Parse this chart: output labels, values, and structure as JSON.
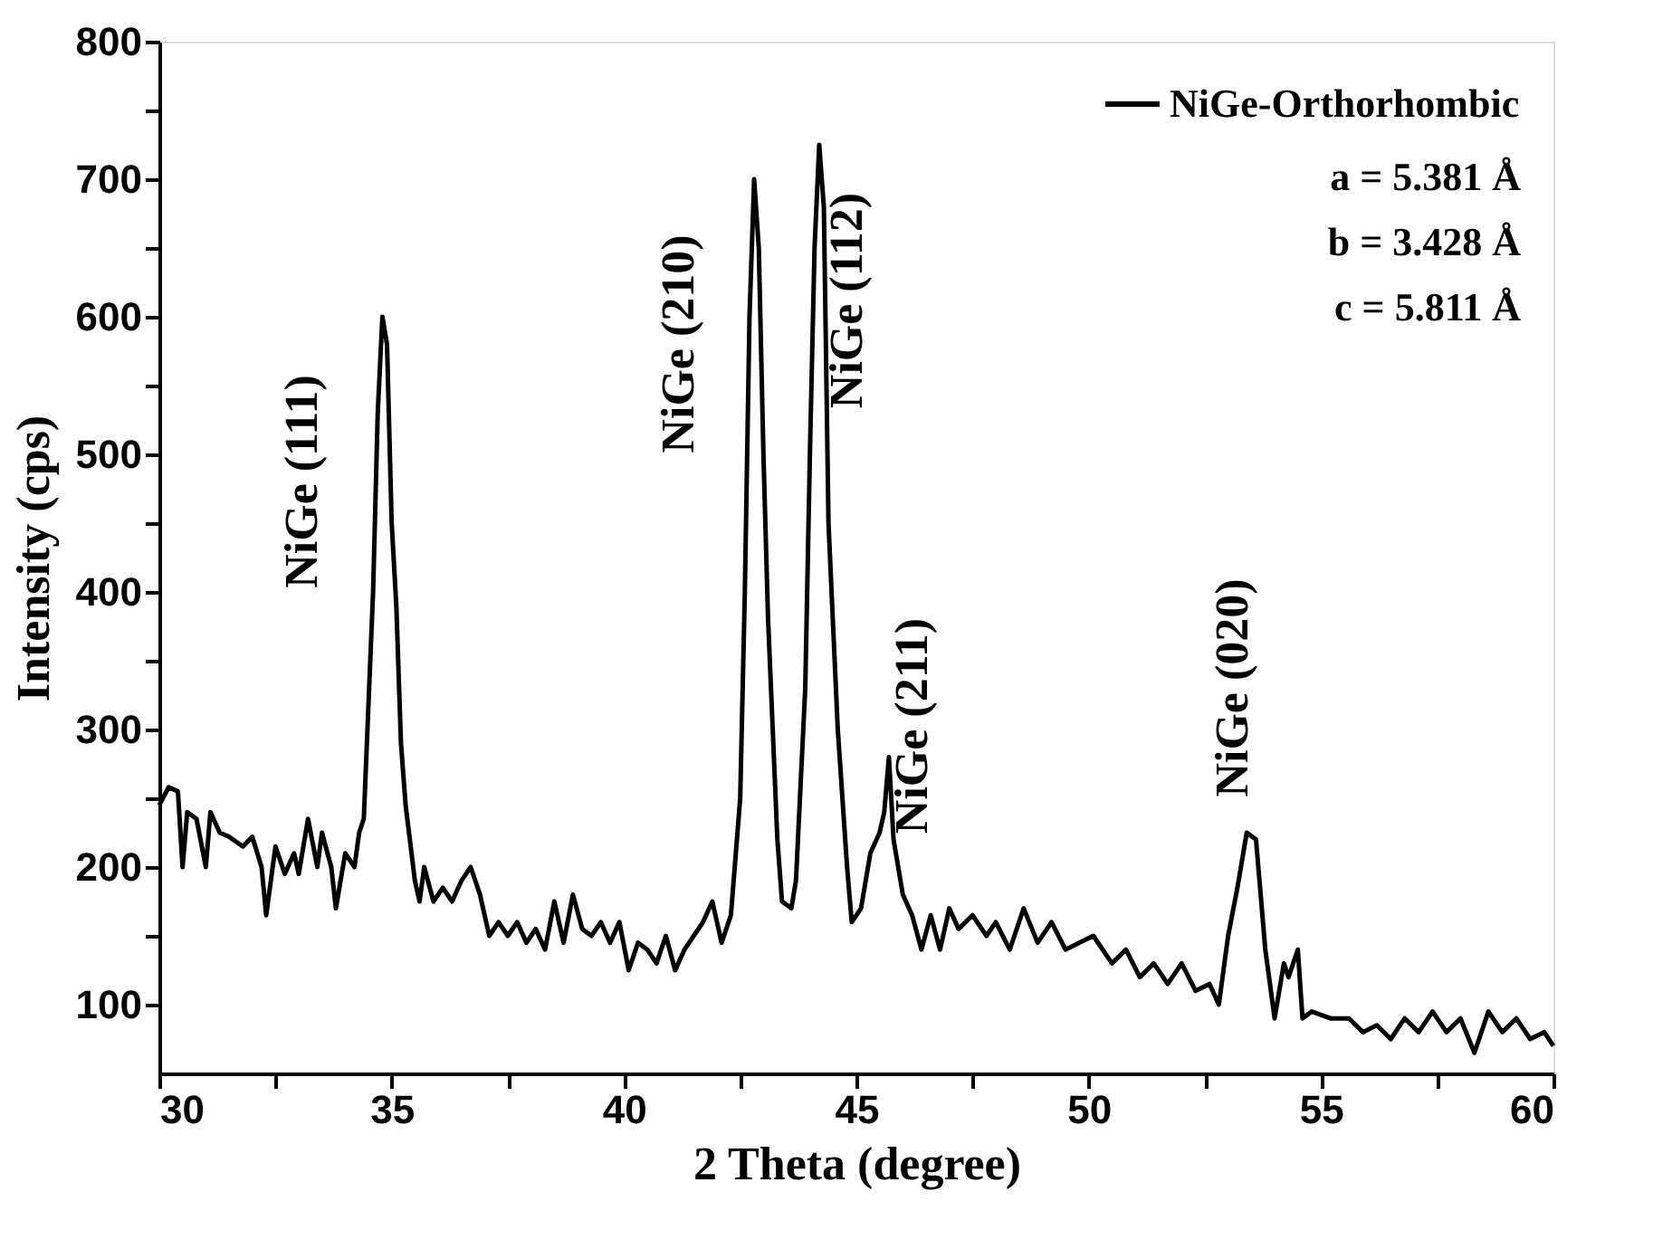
{
  "chart_data": {
    "type": "line",
    "xlabel": "2 Theta (degree)",
    "ylabel": "Intensity (cps)",
    "xlim": [
      30,
      60
    ],
    "ylim": [
      50,
      800
    ],
    "xticks": [
      30,
      {
        "value": 32.5,
        "label": null
      },
      35,
      {
        "value": 37.5,
        "label": null
      },
      40,
      {
        "value": 42.5,
        "label": null
      },
      45,
      {
        "value": 47.5,
        "label": null
      },
      50,
      {
        "value": 52.5,
        "label": null
      },
      55,
      {
        "value": 57.5,
        "label": null
      },
      60
    ],
    "yticks": [
      100,
      {
        "value": 150,
        "label": null
      },
      200,
      {
        "value": 250,
        "label": null
      },
      300,
      {
        "value": 350,
        "label": null
      },
      400,
      {
        "value": 450,
        "label": null
      },
      500,
      {
        "value": 550,
        "label": null
      },
      600,
      {
        "value": 650,
        "label": null
      },
      700,
      {
        "value": 750,
        "label": null
      },
      800
    ],
    "grid": false,
    "legend": "top right",
    "line_style": "solid",
    "marker": "none",
    "series": [
      {
        "name": "NiGe-Orthorhombic",
        "color": "#000000",
        "x": [
          30.0,
          30.2,
          30.4,
          30.5,
          30.6,
          30.8,
          31.0,
          31.1,
          31.3,
          31.5,
          31.8,
          32.0,
          32.2,
          32.3,
          32.5,
          32.7,
          32.9,
          33.0,
          33.2,
          33.4,
          33.5,
          33.7,
          33.8,
          34.0,
          34.2,
          34.3,
          34.4,
          34.6,
          34.7,
          34.8,
          34.9,
          35.0,
          35.1,
          35.2,
          35.3,
          35.5,
          35.6,
          35.7,
          35.9,
          36.1,
          36.3,
          36.5,
          36.7,
          36.9,
          37.1,
          37.3,
          37.5,
          37.7,
          37.9,
          38.1,
          38.3,
          38.5,
          38.7,
          38.9,
          39.1,
          39.3,
          39.5,
          39.7,
          39.9,
          40.1,
          40.3,
          40.5,
          40.7,
          40.9,
          41.1,
          41.3,
          41.5,
          41.7,
          41.9,
          42.1,
          42.3,
          42.5,
          42.6,
          42.7,
          42.8,
          42.9,
          43.0,
          43.1,
          43.2,
          43.3,
          43.4,
          43.6,
          43.7,
          43.9,
          44.0,
          44.1,
          44.2,
          44.3,
          44.4,
          44.6,
          44.8,
          44.9,
          45.1,
          45.3,
          45.5,
          45.6,
          45.7,
          45.8,
          46.0,
          46.2,
          46.4,
          46.6,
          46.8,
          47.0,
          47.2,
          47.5,
          47.8,
          48.0,
          48.3,
          48.6,
          48.9,
          49.2,
          49.5,
          49.8,
          50.1,
          50.5,
          50.8,
          51.1,
          51.4,
          51.7,
          52.0,
          52.3,
          52.6,
          52.8,
          53.0,
          53.2,
          53.4,
          53.6,
          53.8,
          54.0,
          54.2,
          54.3,
          54.5,
          54.6,
          54.8,
          55.2,
          55.6,
          55.9,
          56.2,
          56.5,
          56.8,
          57.1,
          57.4,
          57.7,
          58.0,
          58.3,
          58.6,
          58.9,
          59.2,
          59.5,
          59.8,
          60.0
        ],
        "values": [
          245,
          258,
          255,
          200,
          240,
          235,
          200,
          240,
          225,
          222,
          215,
          222,
          200,
          165,
          215,
          195,
          210,
          195,
          235,
          200,
          225,
          200,
          170,
          210,
          200,
          225,
          235,
          400,
          530,
          600,
          580,
          450,
          390,
          290,
          245,
          190,
          175,
          200,
          175,
          185,
          175,
          190,
          200,
          180,
          150,
          160,
          150,
          160,
          145,
          155,
          140,
          175,
          145,
          180,
          155,
          150,
          160,
          145,
          160,
          125,
          145,
          140,
          130,
          150,
          125,
          140,
          150,
          160,
          175,
          145,
          165,
          250,
          400,
          600,
          700,
          650,
          500,
          380,
          300,
          220,
          175,
          170,
          190,
          330,
          500,
          650,
          725,
          680,
          450,
          300,
          200,
          160,
          170,
          210,
          225,
          240,
          280,
          220,
          180,
          165,
          140,
          165,
          140,
          170,
          155,
          165,
          150,
          160,
          140,
          170,
          145,
          160,
          140,
          145,
          150,
          130,
          140,
          120,
          130,
          115,
          130,
          110,
          115,
          100,
          150,
          185,
          225,
          220,
          140,
          90,
          130,
          120,
          140,
          90,
          95,
          90,
          90,
          80,
          85,
          75,
          90,
          80,
          95,
          80,
          90,
          65,
          95,
          80,
          90,
          75,
          80,
          70
        ]
      }
    ],
    "annotations": [
      "NiGe (111)",
      "NiGe (210)",
      "NiGe (112)",
      "NiGe (211)",
      "NiGe (020)",
      "a = 5.381 Å",
      "b = 3.428 Å",
      "c = 5.811 Å"
    ]
  }
}
